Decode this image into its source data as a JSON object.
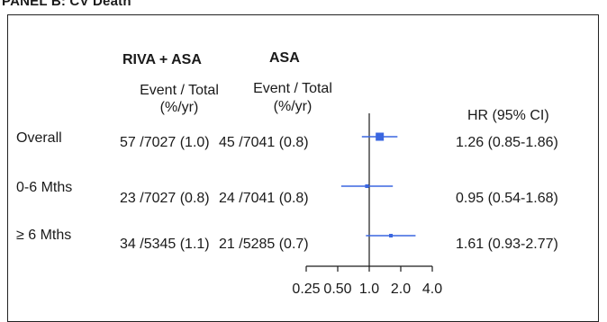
{
  "panel_title": "PANEL B: CV Death",
  "columns": {
    "group1": {
      "name": "RIVA + ASA",
      "sub1": "Event / Total",
      "sub2": "(%/yr)"
    },
    "group2": {
      "name": "ASA",
      "sub1": "Event / Total",
      "sub2": "(%/yr)"
    },
    "hr_header": "HR (95% CI)"
  },
  "rows": [
    {
      "label": "Overall",
      "riva": "57 /7027 (1.0)",
      "asa": "45 /7041 (0.8)",
      "hr_text": "1.26 (0.85-1.86)"
    },
    {
      "label": "0-6 Mths",
      "riva": "23 /7027 (0.8)",
      "asa": "24 /7041 (0.8)",
      "hr_text": "0.95 (0.54-1.68)"
    },
    {
      "label": "≥ 6 Mths",
      "riva": "34 /5345 (1.1)",
      "asa": "21 /5285 (0.7)",
      "hr_text": "1.61 (0.93-2.77)"
    }
  ],
  "colors": {
    "marker": "#3a66e0",
    "line": "#1a1a1a"
  },
  "chart_data": {
    "type": "forest",
    "scale": "log",
    "reference_line": 1.0,
    "xlim": [
      0.25,
      4.0
    ],
    "ticks": [
      "0.25",
      "0.50",
      "1.0",
      "2.0",
      "4.0"
    ],
    "tick_values": [
      0.25,
      0.5,
      1.0,
      2.0,
      4.0
    ],
    "series": [
      {
        "label": "Overall",
        "hr": 1.26,
        "lo": 0.85,
        "hi": 1.86,
        "marker": "square"
      },
      {
        "label": "0-6 Mths",
        "hr": 0.95,
        "lo": 0.54,
        "hi": 1.68,
        "marker": "small-square"
      },
      {
        "label": "≥ 6 Mths",
        "hr": 1.61,
        "lo": 0.93,
        "hi": 2.77,
        "marker": "small-square"
      }
    ]
  }
}
